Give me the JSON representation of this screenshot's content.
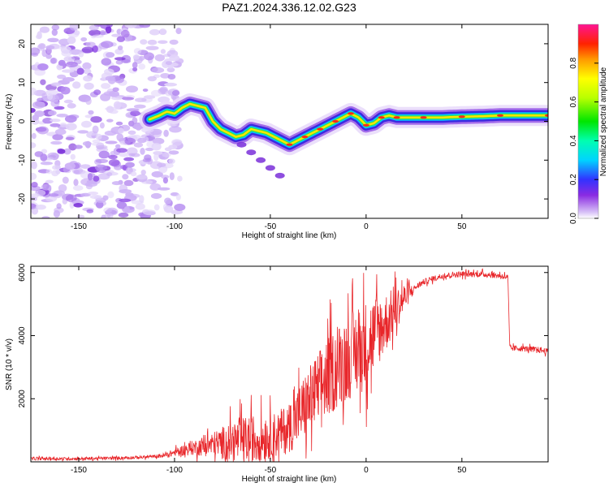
{
  "title": "PAZ1.2024.336.12.02.G23",
  "chart_data": [
    {
      "type": "heatmap",
      "xlabel": "Height of straight line (km)",
      "ylabel": "Frequency (Hz)",
      "xlim": [
        -175,
        95
      ],
      "ylim": [
        -25,
        25
      ],
      "xticks": [
        -150,
        -100,
        -50,
        0,
        50
      ],
      "yticks": [
        -20,
        -10,
        0,
        10,
        20
      ],
      "xtick_labels": [
        "-150",
        "-100",
        "-50",
        "0",
        "50"
      ],
      "ytick_labels": [
        "-20",
        "-10",
        "0",
        "10",
        "20"
      ],
      "colorbar": {
        "label": "Normalized spectral amplitude",
        "range": [
          0,
          1
        ],
        "ticks": [
          0.0,
          0.2,
          0.4,
          0.6,
          0.8
        ],
        "tick_labels": [
          "0.0",
          "0.2",
          "0.4",
          "0.6",
          "0.8"
        ]
      },
      "ridge": {
        "x": [
          -113,
          -108,
          -104,
          -100,
          -96,
          -92,
          -88,
          -84,
          -80,
          -76,
          -72,
          -68,
          -64,
          -60,
          -56,
          -52,
          -48,
          -44,
          -40,
          -36,
          -32,
          -28,
          -24,
          -20,
          -16,
          -12,
          -8,
          -4,
          0,
          4,
          8,
          12,
          16,
          20,
          30,
          40,
          50,
          60,
          70,
          80,
          95
        ],
        "y": [
          0.5,
          1.5,
          2.5,
          2,
          3.5,
          4.5,
          4,
          3.5,
          0,
          -2,
          -3,
          -4,
          -3.5,
          -2,
          -2.5,
          -3,
          -4,
          -5,
          -6,
          -5,
          -4,
          -3,
          -2,
          -1,
          0,
          1,
          2,
          1,
          -1,
          -0.5,
          1,
          1.5,
          1,
          1,
          1,
          1,
          1.2,
          1.3,
          1.5,
          1.5,
          1.5
        ]
      },
      "branch": {
        "x": [
          -65,
          -60,
          -55,
          -50,
          -45
        ],
        "y": [
          -6,
          -8,
          -10,
          -12,
          -14
        ]
      },
      "noise_region": [
        -175,
        -105
      ]
    },
    {
      "type": "line",
      "xlabel": "Height of straight line (km)",
      "ylabel": "SNR (10 * v/v)",
      "xlim": [
        -175,
        95
      ],
      "ylim": [
        0,
        6200
      ],
      "xticks": [
        -150,
        -100,
        -50,
        0,
        50
      ],
      "yticks": [
        2000,
        4000,
        6000
      ],
      "xtick_labels": [
        "-150",
        "-100",
        "-50",
        "0",
        "50"
      ],
      "ytick_labels": [
        "2000",
        "4000",
        "6000"
      ],
      "series": [
        {
          "color": "#e8262a",
          "baseline": {
            "x": [
              -175,
              -150,
              -130,
              -115,
              -105,
              -100,
              -90,
              -80,
              -70,
              -60,
              -50,
              -45,
              -40,
              -35,
              -30,
              -25,
              -20,
              -15,
              -10,
              -5,
              0,
              5,
              10,
              15,
              20,
              25,
              30,
              40,
              50,
              60,
              70,
              74,
              75,
              80,
              90,
              95
            ],
            "y": [
              100,
              100,
              120,
              150,
              200,
              300,
              450,
              550,
              650,
              700,
              800,
              900,
              1100,
              1500,
              1900,
              2300,
              2700,
              3000,
              3300,
              3500,
              3700,
              4100,
              4400,
              4800,
              5200,
              5500,
              5700,
              5900,
              5950,
              5950,
              5900,
              5850,
              3600,
              3600,
              3550,
              3500
            ]
          },
          "noise_amplitude": {
            "x": [
              -175,
              -110,
              -100,
              -90,
              -80,
              -70,
              -60,
              -50,
              -40,
              -30,
              -20,
              -10,
              0,
              10,
              20,
              25,
              95
            ],
            "y": [
              60,
              60,
              150,
              300,
              500,
              800,
              1000,
              900,
              1000,
              1400,
              1600,
              1700,
              1800,
              1200,
              600,
              120,
              120
            ]
          }
        }
      ]
    }
  ]
}
